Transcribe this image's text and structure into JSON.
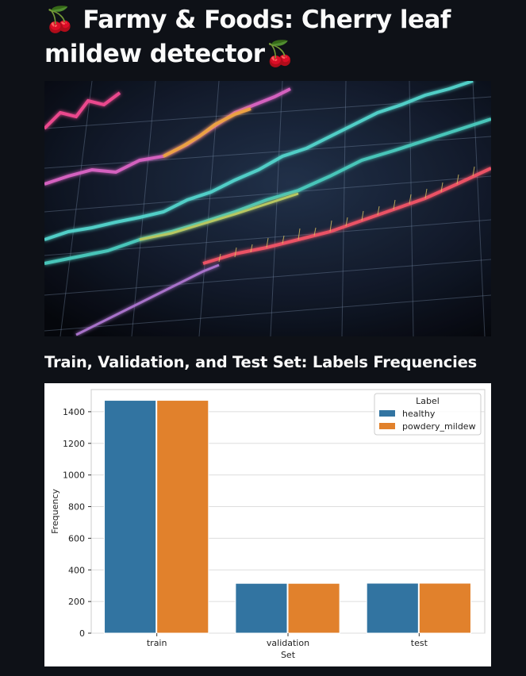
{
  "page": {
    "title": "🍒 Farmy & Foods: Cherry leaf mildew detector🍒",
    "section_heading": "Train, Validation, and Test Set: Labels Frequencies"
  },
  "hero_image": {
    "icon": "stock-chart-lines-image"
  },
  "chart_data": {
    "type": "bar",
    "categories": [
      "train",
      "validation",
      "test"
    ],
    "series": [
      {
        "name": "healthy",
        "values": [
          1472,
          315,
          316
        ],
        "color": "#3274a1"
      },
      {
        "name": "powdery_mildew",
        "values": [
          1472,
          315,
          316
        ],
        "color": "#e1812c"
      }
    ],
    "xlabel": "Set",
    "ylabel": "Frequency",
    "ylim": [
      0,
      1540
    ],
    "yticks": [
      0,
      200,
      400,
      600,
      800,
      1000,
      1200,
      1400
    ],
    "legend_title": "Label",
    "legend_position": "top-right",
    "grid": true
  }
}
